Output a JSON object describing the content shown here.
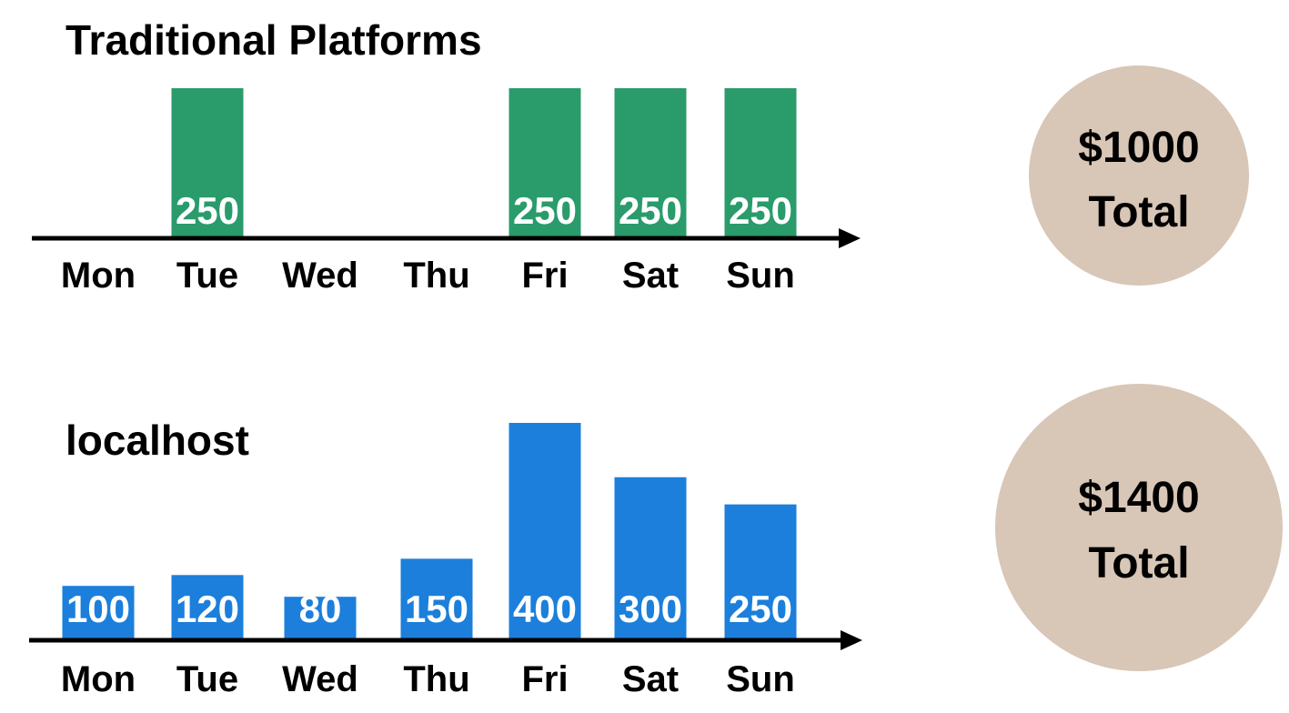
{
  "chart_data": [
    {
      "type": "bar",
      "title": "Traditional Platforms",
      "categories": [
        "Mon",
        "Tue",
        "Wed",
        "Thu",
        "Fri",
        "Sat",
        "Sun"
      ],
      "values": [
        null,
        250,
        null,
        null,
        250,
        250,
        250
      ],
      "value_labels": [
        "",
        "250",
        "",
        "",
        "250",
        "250",
        "250"
      ],
      "bar_color": "#2a9b6b",
      "total": {
        "amount": "$1000",
        "label": "Total"
      },
      "total_color": "#d8c6b6"
    },
    {
      "type": "bar",
      "title": "localhost",
      "categories": [
        "Mon",
        "Tue",
        "Wed",
        "Thu",
        "Fri",
        "Sat",
        "Sun"
      ],
      "values": [
        100,
        120,
        80,
        150,
        400,
        300,
        250
      ],
      "value_labels": [
        "100",
        "120",
        "80",
        "150",
        "400",
        "300",
        "250"
      ],
      "bar_color": "#1b7fdb",
      "total": {
        "amount": "$1400",
        "label": "Total"
      },
      "total_color": "#d8c6b6"
    }
  ]
}
